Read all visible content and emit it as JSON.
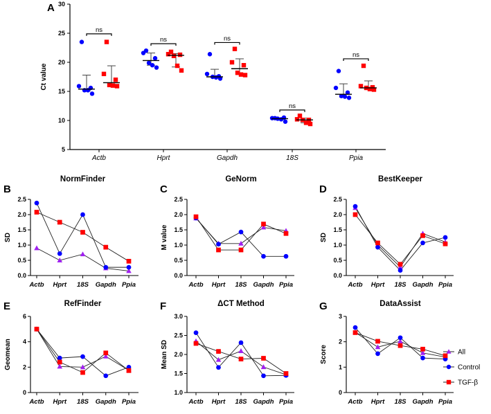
{
  "colors": {
    "All": "#a020f0",
    "Control": "#0000ff",
    "TGF-β": "#ff0000"
  },
  "legend": {
    "items": [
      {
        "name": "All",
        "marker": "triangle",
        "color": "#a020f0"
      },
      {
        "name": "Control",
        "marker": "circle",
        "color": "#0000ff"
      },
      {
        "name": "TGF-β",
        "marker": "square",
        "color": "#ff0000"
      }
    ]
  },
  "chart_data": [
    {
      "panel": "A",
      "type": "scatter",
      "title": "",
      "xlabel": "",
      "ylabel": "Ct value",
      "ylim": [
        5,
        30
      ],
      "yticks": [
        "5",
        "10",
        "15",
        "20",
        "25",
        "30"
      ],
      "categories": [
        "Actb",
        "Hprt",
        "Gapdh",
        "18S",
        "Ppia"
      ],
      "series": [
        {
          "name": "Control",
          "marker": "circle",
          "color": "#0000ff",
          "values": [
            [
              23.5,
              15.9,
              15.6,
              15.2,
              15.2,
              14.6
            ],
            [
              22.0,
              21.6,
              20.7,
              19.9,
              19.5,
              19.1
            ],
            [
              21.4,
              18.0,
              17.6,
              17.5,
              17.4,
              17.2
            ],
            [
              10.4,
              10.4,
              10.5,
              10.3,
              10.2,
              9.8
            ],
            [
              18.5,
              15.6,
              14.8,
              14.2,
              14.1,
              13.9
            ]
          ],
          "center": [
            15.4,
            20.3,
            17.5,
            10.3,
            14.5
          ],
          "low": [
            15.1,
            19.5,
            17.4,
            10.2,
            14.0
          ],
          "high": [
            17.8,
            21.6,
            18.8,
            10.4,
            16.3
          ]
        },
        {
          "name": "TGF-β",
          "marker": "square",
          "color": "#ff0000",
          "values": [
            [
              23.5,
              18.0,
              17.0,
              16.1,
              16.0,
              15.9
            ],
            [
              21.8,
              21.4,
              21.3,
              21.1,
              19.4,
              18.6
            ],
            [
              22.3,
              20.0,
              19.5,
              18.2,
              17.9,
              17.8
            ],
            [
              10.8,
              10.2,
              10.1,
              10.1,
              9.6,
              9.4
            ],
            [
              19.4,
              15.9,
              15.7,
              15.6,
              15.4,
              15.3
            ]
          ],
          "center": [
            16.5,
            21.2,
            18.9,
            10.1,
            15.6
          ],
          "low": [
            16.0,
            19.2,
            17.9,
            9.6,
            15.5
          ],
          "high": [
            19.4,
            21.5,
            20.6,
            10.4,
            16.8
          ]
        }
      ],
      "annotations": [
        {
          "label": "ns",
          "category": "Actb",
          "y": 24.9
        },
        {
          "label": "ns",
          "category": "Hprt",
          "y": 23.2
        },
        {
          "label": "ns",
          "category": "Gapdh",
          "y": 23.4
        },
        {
          "label": "ns",
          "category": "18S",
          "y": 11.8
        },
        {
          "label": "ns",
          "category": "Ppia",
          "y": 20.6
        }
      ]
    },
    {
      "panel": "B",
      "type": "line",
      "title": "NormFinder",
      "ylabel": "SD",
      "ylim": [
        0,
        2.5
      ],
      "yticks": [
        "0.0",
        "0.5",
        "1.0",
        "1.5",
        "2.0",
        "2.5"
      ],
      "categories": [
        "Actb",
        "Hprt",
        "18S",
        "Gapdh",
        "Ppia"
      ],
      "series": [
        {
          "name": "All",
          "values": [
            0.9,
            0.5,
            0.7,
            0.24,
            0.15
          ]
        },
        {
          "name": "Control",
          "values": [
            2.38,
            0.72,
            2.0,
            0.27,
            0.27
          ]
        },
        {
          "name": "TGF-β",
          "values": [
            2.08,
            1.75,
            1.42,
            0.93,
            0.47
          ]
        }
      ]
    },
    {
      "panel": "C",
      "type": "line",
      "title": "GeNorm",
      "ylabel": "M value",
      "ylim": [
        0,
        2.5
      ],
      "yticks": [
        "0.0",
        "0.5",
        "1.0",
        "1.5",
        "2.0",
        "2.5"
      ],
      "categories": [
        "Actb",
        "Hprt",
        "18S",
        "Gapdh",
        "Ppia"
      ],
      "series": [
        {
          "name": "All",
          "values": [
            1.88,
            1.05,
            1.05,
            1.58,
            1.47
          ]
        },
        {
          "name": "Control",
          "values": [
            1.89,
            1.03,
            1.43,
            0.63,
            0.63
          ]
        },
        {
          "name": "TGF-β",
          "values": [
            1.93,
            0.84,
            0.84,
            1.69,
            1.38
          ]
        }
      ]
    },
    {
      "panel": "D",
      "type": "line",
      "title": "BestKeeper",
      "ylabel": "SD",
      "ylim": [
        0,
        2.5
      ],
      "yticks": [
        "0.0",
        "0.5",
        "1.0",
        "1.5",
        "2.0",
        "2.5"
      ],
      "categories": [
        "Actb",
        "Hprt",
        "18S",
        "Gapdh",
        "Ppia"
      ],
      "series": [
        {
          "name": "All",
          "values": [
            2.22,
            1.0,
            0.28,
            1.38,
            1.1
          ]
        },
        {
          "name": "Control",
          "values": [
            2.27,
            0.93,
            0.17,
            1.07,
            1.25
          ]
        },
        {
          "name": "TGF-β",
          "values": [
            2.0,
            1.07,
            0.37,
            1.31,
            1.04
          ]
        }
      ]
    },
    {
      "panel": "E",
      "type": "line",
      "title": "RefFinder",
      "ylabel": "Geomean",
      "ylim": [
        0,
        6
      ],
      "yticks": [
        "0",
        "2",
        "4",
        "6"
      ],
      "categories": [
        "Actb",
        "Hprt",
        "18S",
        "Gapdh",
        "Ppia"
      ],
      "series": [
        {
          "name": "All",
          "values": [
            5.0,
            2.05,
            2.0,
            2.85,
            1.75
          ]
        },
        {
          "name": "Control",
          "values": [
            5.0,
            2.72,
            2.83,
            1.32,
            2.0
          ]
        },
        {
          "name": "TGF-β",
          "values": [
            5.0,
            2.4,
            1.58,
            3.12,
            1.73
          ]
        }
      ]
    },
    {
      "panel": "F",
      "type": "line",
      "title": "ΔCT Method",
      "ylabel": "Mean SD",
      "ylim": [
        1.0,
        3.0
      ],
      "yticks": [
        "1.0",
        "1.5",
        "2.0",
        "2.5",
        "3.0"
      ],
      "categories": [
        "Actb",
        "Hprt",
        "18S",
        "Gapdh",
        "Ppia"
      ],
      "series": [
        {
          "name": "All",
          "values": [
            2.35,
            1.86,
            2.09,
            1.67,
            1.47
          ]
        },
        {
          "name": "Control",
          "values": [
            2.57,
            1.66,
            2.31,
            1.44,
            1.45
          ]
        },
        {
          "name": "TGF-β",
          "values": [
            2.29,
            2.08,
            1.88,
            1.9,
            1.5
          ]
        }
      ]
    },
    {
      "panel": "G",
      "type": "line",
      "title": "DataAssist",
      "ylabel": "Score",
      "ylim": [
        0,
        3
      ],
      "yticks": [
        "0",
        "1",
        "2",
        "3"
      ],
      "categories": [
        "Actb",
        "Hprt",
        "18S",
        "Gapdh",
        "Ppia"
      ],
      "series": [
        {
          "name": "All",
          "values": [
            2.37,
            1.79,
            2.02,
            1.56,
            1.4
          ]
        },
        {
          "name": "Control",
          "values": [
            2.56,
            1.53,
            2.16,
            1.36,
            1.32
          ]
        },
        {
          "name": "TGF-β",
          "values": [
            2.36,
            2.02,
            1.85,
            1.71,
            1.45
          ]
        }
      ]
    }
  ]
}
